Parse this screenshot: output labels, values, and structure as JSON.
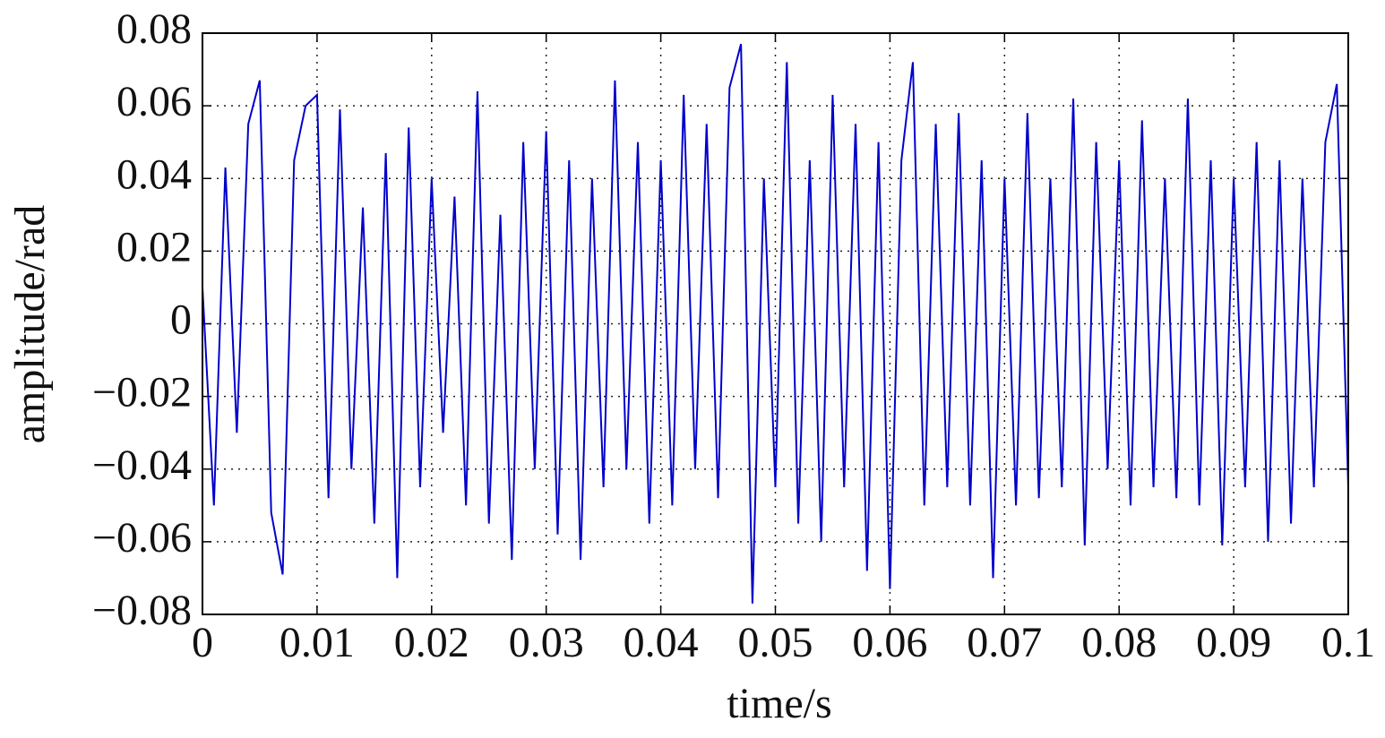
{
  "chart_data": {
    "type": "line",
    "xlabel": "time/s",
    "ylabel": "amplitude/rad",
    "x": [
      0,
      0.001,
      0.002,
      0.003,
      0.004,
      0.005,
      0.006,
      0.007,
      0.008,
      0.009,
      0.01,
      0.011,
      0.012,
      0.013,
      0.014,
      0.015,
      0.016,
      0.017,
      0.018,
      0.019,
      0.02,
      0.021,
      0.022,
      0.023,
      0.024,
      0.025,
      0.026,
      0.027,
      0.028,
      0.029,
      0.03,
      0.031,
      0.032,
      0.033,
      0.034,
      0.035,
      0.036,
      0.037,
      0.038,
      0.039,
      0.04,
      0.041,
      0.042,
      0.043,
      0.044,
      0.045,
      0.046,
      0.047,
      0.048,
      0.049,
      0.05,
      0.051,
      0.052,
      0.053,
      0.054,
      0.055,
      0.056,
      0.057,
      0.058,
      0.059,
      0.06,
      0.061,
      0.062,
      0.063,
      0.064,
      0.065,
      0.066,
      0.067,
      0.068,
      0.069,
      0.07,
      0.071,
      0.072,
      0.073,
      0.074,
      0.075,
      0.076,
      0.077,
      0.078,
      0.079,
      0.08,
      0.081,
      0.082,
      0.083,
      0.084,
      0.085,
      0.086,
      0.087,
      0.088,
      0.089,
      0.09,
      0.091,
      0.092,
      0.093,
      0.094,
      0.095,
      0.096,
      0.097,
      0.098,
      0.099,
      0.1
    ],
    "series": [
      {
        "color": "#0000cc",
        "values": [
          0.01,
          -0.05,
          0.043,
          -0.03,
          0.055,
          0.067,
          -0.052,
          -0.069,
          0.045,
          0.06,
          0.063,
          -0.048,
          0.059,
          -0.04,
          0.032,
          -0.055,
          0.047,
          -0.07,
          0.054,
          -0.045,
          0.04,
          -0.03,
          0.035,
          -0.05,
          0.064,
          -0.055,
          0.03,
          -0.065,
          0.05,
          -0.04,
          0.053,
          -0.058,
          0.045,
          -0.065,
          0.04,
          -0.045,
          0.067,
          -0.04,
          0.05,
          -0.055,
          0.045,
          -0.05,
          0.063,
          -0.04,
          0.055,
          -0.048,
          0.065,
          0.077,
          -0.077,
          0.04,
          -0.045,
          0.072,
          -0.055,
          0.045,
          -0.06,
          0.063,
          -0.045,
          0.055,
          -0.068,
          0.05,
          -0.073,
          0.045,
          0.072,
          -0.05,
          0.055,
          -0.045,
          0.058,
          -0.05,
          0.045,
          -0.07,
          0.04,
          -0.05,
          0.058,
          -0.048,
          0.04,
          -0.045,
          0.062,
          -0.061,
          0.05,
          -0.04,
          0.045,
          -0.05,
          0.056,
          -0.045,
          0.04,
          -0.048,
          0.062,
          -0.05,
          0.045,
          -0.061,
          0.04,
          -0.045,
          0.05,
          -0.06,
          0.045,
          -0.055,
          0.04,
          -0.045,
          0.05,
          0.066,
          -0.045
        ]
      }
    ],
    "xlim": [
      0,
      0.1
    ],
    "xticks": [
      0,
      0.01,
      0.02,
      0.03,
      0.04,
      0.05,
      0.06,
      0.07,
      0.08,
      0.09,
      0.1
    ],
    "ylim": [
      -0.08,
      0.08
    ],
    "yticks": [
      {
        "value": -0.08,
        "label": "−0.08"
      },
      {
        "value": -0.06,
        "label": "−0.06"
      },
      {
        "value": -0.04,
        "label": "−0.04"
      },
      {
        "value": -0.02,
        "label": "−0.02"
      },
      0,
      0.02,
      0.04,
      0.06,
      0.08
    ],
    "grid": true
  }
}
